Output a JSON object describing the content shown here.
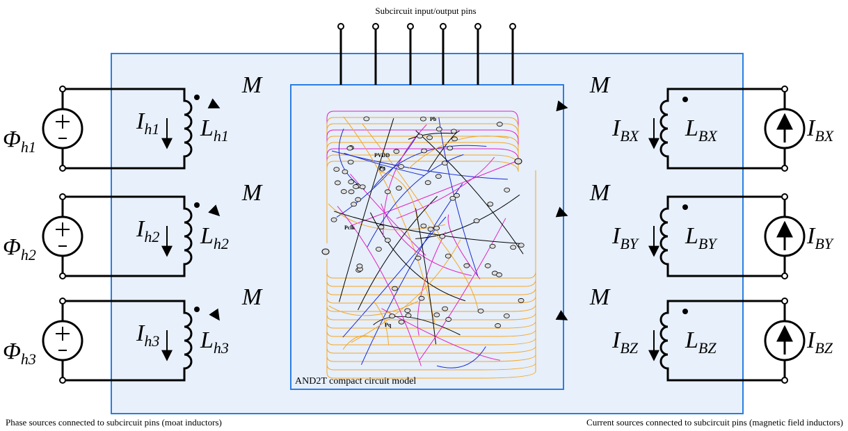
{
  "header": {
    "title": "Subcircuit input/output pins"
  },
  "phase_sources": [
    {
      "source": {
        "symbol": "Φ",
        "subscript": "h1"
      },
      "current": {
        "symbol": "I",
        "subscript": "h1"
      },
      "inductor": {
        "symbol": "L",
        "subscript": "h1"
      },
      "coupling": "M"
    },
    {
      "source": {
        "symbol": "Φ",
        "subscript": "h2"
      },
      "current": {
        "symbol": "I",
        "subscript": "h2"
      },
      "inductor": {
        "symbol": "L",
        "subscript": "h2"
      },
      "coupling": "M"
    },
    {
      "source": {
        "symbol": "Φ",
        "subscript": "h3"
      },
      "current": {
        "symbol": "I",
        "subscript": "h3"
      },
      "inductor": {
        "symbol": "L",
        "subscript": "h3"
      },
      "coupling": "M"
    }
  ],
  "current_sources": [
    {
      "current": {
        "symbol": "I",
        "subscript": "BX"
      },
      "inductor": {
        "symbol": "L",
        "subscript": "BX"
      },
      "source": {
        "symbol": "I",
        "subscript": "BX"
      },
      "coupling": "M"
    },
    {
      "current": {
        "symbol": "I",
        "subscript": "BY"
      },
      "inductor": {
        "symbol": "L",
        "subscript": "BY"
      },
      "source": {
        "symbol": "I",
        "subscript": "BY"
      },
      "coupling": "M"
    },
    {
      "current": {
        "symbol": "I",
        "subscript": "BZ"
      },
      "inductor": {
        "symbol": "L",
        "subscript": "BZ"
      },
      "source": {
        "symbol": "I",
        "subscript": "BZ"
      },
      "coupling": "M"
    }
  ],
  "model": {
    "label": "AND2T compact circuit model",
    "node_labels": [
      "Pb",
      "PVDD",
      "Pa",
      "Pclk",
      "Pq"
    ]
  },
  "footer": {
    "left": "Phase sources connected to subcircuit pins (moat inductors)",
    "right": "Current sources connected to subcircuit pins (magnetic field inductors)"
  }
}
